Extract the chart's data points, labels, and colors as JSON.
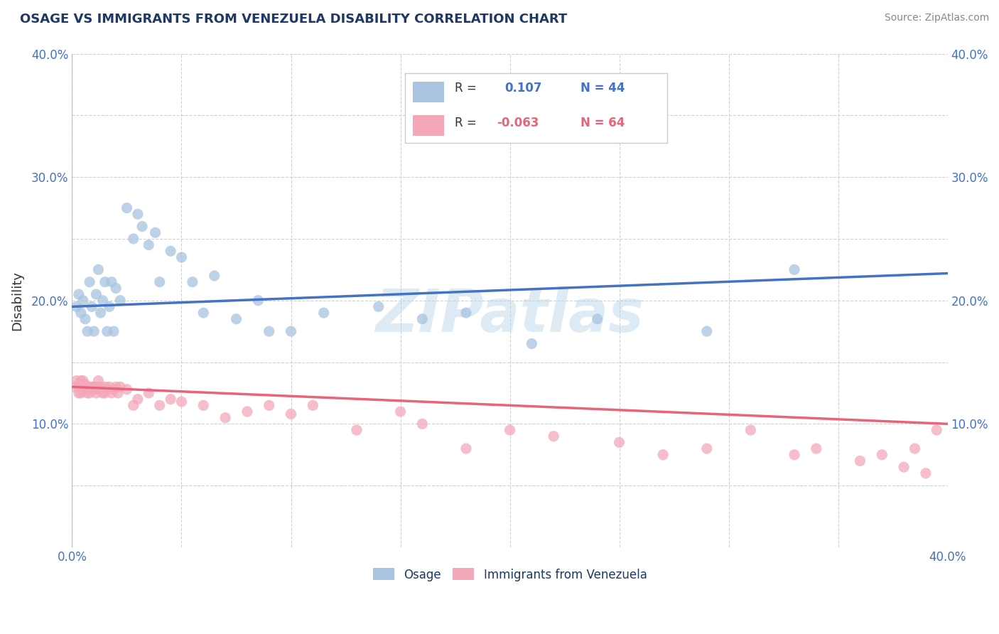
{
  "title": "OSAGE VS IMMIGRANTS FROM VENEZUELA DISABILITY CORRELATION CHART",
  "source": "Source: ZipAtlas.com",
  "ylabel": "Disability",
  "xlim": [
    0.0,
    0.4
  ],
  "ylim": [
    0.0,
    0.4
  ],
  "blue_color": "#A8C4E0",
  "pink_color": "#F4A7B9",
  "blue_line_color": "#4472C4",
  "pink_line_color": "#E8647A",
  "title_color": "#1F3864",
  "tick_color": "#4472C4",
  "grid_color": "#CCCCCC",
  "background_color": "#FFFFFF",
  "watermark": "ZIPatlas",
  "osage_x": [
    0.002,
    0.003,
    0.004,
    0.005,
    0.006,
    0.007,
    0.008,
    0.009,
    0.01,
    0.011,
    0.012,
    0.013,
    0.014,
    0.015,
    0.016,
    0.017,
    0.018,
    0.019,
    0.02,
    0.022,
    0.025,
    0.028,
    0.03,
    0.032,
    0.035,
    0.038,
    0.04,
    0.045,
    0.05,
    0.055,
    0.06,
    0.065,
    0.075,
    0.085,
    0.09,
    0.1,
    0.115,
    0.14,
    0.16,
    0.18,
    0.21,
    0.24,
    0.29,
    0.33
  ],
  "osage_y": [
    0.195,
    0.205,
    0.19,
    0.2,
    0.185,
    0.175,
    0.215,
    0.195,
    0.175,
    0.205,
    0.225,
    0.19,
    0.2,
    0.215,
    0.175,
    0.195,
    0.215,
    0.175,
    0.21,
    0.2,
    0.275,
    0.25,
    0.27,
    0.26,
    0.245,
    0.255,
    0.215,
    0.24,
    0.235,
    0.215,
    0.19,
    0.22,
    0.185,
    0.2,
    0.175,
    0.175,
    0.19,
    0.195,
    0.185,
    0.19,
    0.165,
    0.185,
    0.175,
    0.225
  ],
  "venezuela_x": [
    0.001,
    0.002,
    0.003,
    0.003,
    0.004,
    0.004,
    0.005,
    0.005,
    0.006,
    0.006,
    0.007,
    0.007,
    0.008,
    0.008,
    0.009,
    0.009,
    0.01,
    0.01,
    0.011,
    0.011,
    0.012,
    0.012,
    0.013,
    0.014,
    0.015,
    0.015,
    0.016,
    0.017,
    0.018,
    0.019,
    0.02,
    0.021,
    0.022,
    0.025,
    0.028,
    0.03,
    0.035,
    0.04,
    0.045,
    0.05,
    0.06,
    0.07,
    0.08,
    0.09,
    0.1,
    0.11,
    0.13,
    0.15,
    0.16,
    0.18,
    0.2,
    0.22,
    0.25,
    0.27,
    0.29,
    0.31,
    0.33,
    0.34,
    0.36,
    0.37,
    0.38,
    0.385,
    0.39,
    0.395
  ],
  "venezuela_y": [
    0.13,
    0.135,
    0.125,
    0.13,
    0.135,
    0.125,
    0.13,
    0.135,
    0.128,
    0.132,
    0.125,
    0.13,
    0.13,
    0.125,
    0.13,
    0.128,
    0.13,
    0.128,
    0.125,
    0.13,
    0.135,
    0.128,
    0.13,
    0.125,
    0.13,
    0.125,
    0.128,
    0.13,
    0.125,
    0.128,
    0.13,
    0.125,
    0.13,
    0.128,
    0.115,
    0.12,
    0.125,
    0.115,
    0.12,
    0.118,
    0.115,
    0.105,
    0.11,
    0.115,
    0.108,
    0.115,
    0.095,
    0.11,
    0.1,
    0.08,
    0.095,
    0.09,
    0.085,
    0.075,
    0.08,
    0.095,
    0.075,
    0.08,
    0.07,
    0.075,
    0.065,
    0.08,
    0.06,
    0.095
  ],
  "blue_line_x0": 0.0,
  "blue_line_y0": 0.195,
  "blue_line_x1": 0.4,
  "blue_line_y1": 0.222,
  "pink_line_x0": 0.0,
  "pink_line_y0": 0.13,
  "pink_line_x1": 0.4,
  "pink_line_y1": 0.1
}
